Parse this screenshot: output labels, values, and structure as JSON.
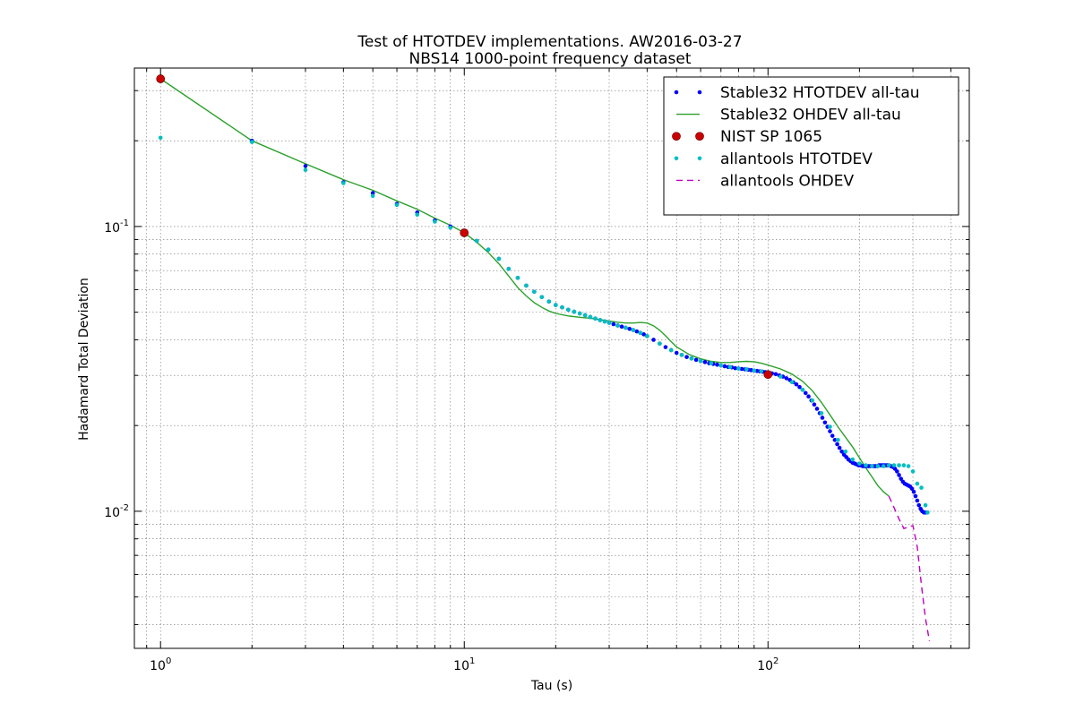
{
  "chart_data": {
    "type": "line",
    "title": "Test of HTOTDEV implementations. AW2016-03-27",
    "subtitle": "NBS14 1000-point frequency dataset",
    "xlabel": "Tau (s)",
    "ylabel": "Hadamard Total Deviation",
    "x_scale": "log",
    "y_scale": "log",
    "xlim": [
      0.82,
      460
    ],
    "ylim": [
      0.0033,
      0.36
    ],
    "grid": true,
    "legend_position": "top-right",
    "x_ticks": [
      {
        "value": 1,
        "base": "10",
        "exp": "0"
      },
      {
        "value": 10,
        "base": "10",
        "exp": "1"
      },
      {
        "value": 100,
        "base": "10",
        "exp": "2"
      }
    ],
    "y_ticks": [
      {
        "value": 0.01,
        "base": "10",
        "exp": "-2"
      },
      {
        "value": 0.1,
        "base": "10",
        "exp": "-1"
      }
    ],
    "series": [
      {
        "name": "Stable32 HTOTDEV all-tau",
        "style": "dots",
        "color": "#0000ff",
        "x": [
          1,
          2,
          3,
          4,
          5,
          6,
          7,
          8,
          9,
          10,
          11,
          12,
          13,
          14,
          15,
          16,
          17,
          18,
          19,
          20,
          21,
          22,
          23,
          24,
          25,
          26,
          27,
          28,
          29,
          30,
          31,
          32,
          33,
          34,
          35,
          36,
          37,
          38,
          39,
          40,
          42,
          44,
          46,
          48,
          50,
          52,
          54,
          56,
          58,
          60,
          62,
          64,
          66,
          68,
          70,
          72,
          74,
          76,
          78,
          80,
          82,
          84,
          86,
          88,
          90,
          92,
          94,
          96,
          98,
          100,
          103,
          106,
          109,
          112,
          115,
          118,
          121,
          124,
          127,
          130,
          133,
          136,
          139,
          142,
          145,
          148,
          151,
          154,
          157,
          160,
          163,
          166,
          169,
          172,
          175,
          178,
          181,
          184,
          187,
          190,
          193,
          196,
          199,
          202,
          205,
          208,
          211,
          214,
          217,
          220,
          223,
          226,
          229,
          232,
          235,
          238,
          241,
          244,
          247,
          250,
          254,
          258,
          262,
          266,
          270,
          274,
          278,
          282,
          286,
          290,
          294,
          298,
          302,
          306,
          310,
          314,
          318,
          322,
          326,
          330,
          335
        ],
        "y": [
          0.33,
          0.2,
          0.163,
          0.143,
          0.131,
          0.12,
          0.112,
          0.105,
          0.1,
          0.095,
          0.089,
          0.083,
          0.077,
          0.071,
          0.066,
          0.062,
          0.059,
          0.0565,
          0.0545,
          0.053,
          0.052,
          0.051,
          0.0502,
          0.0495,
          0.0488,
          0.0481,
          0.0475,
          0.0469,
          0.0464,
          0.0459,
          0.0454,
          0.0449,
          0.0445,
          0.0441,
          0.0437,
          0.0433,
          0.0428,
          0.0423,
          0.0418,
          0.0412,
          0.04,
          0.0388,
          0.0377,
          0.0368,
          0.036,
          0.0354,
          0.0348,
          0.0344,
          0.034,
          0.0337,
          0.0334,
          0.0331,
          0.0329,
          0.0327,
          0.0325,
          0.0323,
          0.0321,
          0.032,
          0.0318,
          0.0317,
          0.0316,
          0.0315,
          0.0314,
          0.0313,
          0.0312,
          0.0311,
          0.031,
          0.0309,
          0.0308,
          0.0307,
          0.0305,
          0.0303,
          0.03,
          0.0297,
          0.0293,
          0.0289,
          0.0284,
          0.0279,
          0.0273,
          0.0267,
          0.026,
          0.0253,
          0.0245,
          0.0237,
          0.0229,
          0.0221,
          0.0213,
          0.0205,
          0.0198,
          0.0191,
          0.0184,
          0.0178,
          0.0172,
          0.0167,
          0.0162,
          0.0158,
          0.0155,
          0.0152,
          0.015,
          0.0148,
          0.0147,
          0.0146,
          0.0145,
          0.0145,
          0.0144,
          0.0144,
          0.0144,
          0.0144,
          0.0144,
          0.0144,
          0.0144,
          0.0144,
          0.0144,
          0.0145,
          0.0145,
          0.0145,
          0.0145,
          0.0145,
          0.0145,
          0.0145,
          0.0144,
          0.0143,
          0.0141,
          0.0138,
          0.0134,
          0.013,
          0.0127,
          0.0125,
          0.0124,
          0.0123,
          0.0122,
          0.012,
          0.0117,
          0.0113,
          0.0109,
          0.0105,
          0.0102,
          0.01,
          0.0099,
          0.0099,
          0.0099
        ]
      },
      {
        "name": "Stable32 OHDEV all-tau",
        "style": "line",
        "color": "#2ca02c",
        "x": [
          1,
          2,
          3,
          4,
          5,
          6,
          7,
          8,
          9,
          10,
          11,
          12,
          13,
          14,
          15,
          16,
          17,
          18,
          19,
          20,
          22,
          24,
          26,
          28,
          30,
          32,
          34,
          36,
          38,
          40,
          42,
          44,
          46,
          48,
          50,
          55,
          60,
          65,
          70,
          75,
          80,
          85,
          90,
          95,
          100,
          110,
          120,
          130,
          140,
          150,
          160,
          170,
          180,
          190,
          200,
          210,
          220,
          230,
          240,
          250
        ],
        "y": [
          0.33,
          0.2,
          0.166,
          0.146,
          0.134,
          0.123,
          0.115,
          0.107,
          0.101,
          0.095,
          0.088,
          0.081,
          0.074,
          0.067,
          0.061,
          0.057,
          0.054,
          0.052,
          0.0505,
          0.0495,
          0.0485,
          0.048,
          0.0476,
          0.0471,
          0.0466,
          0.0461,
          0.0458,
          0.0458,
          0.046,
          0.0458,
          0.0448,
          0.0432,
          0.0413,
          0.0394,
          0.0378,
          0.0355,
          0.0343,
          0.0336,
          0.0333,
          0.0333,
          0.0335,
          0.0336,
          0.0335,
          0.0331,
          0.0326,
          0.0316,
          0.0303,
          0.0286,
          0.0265,
          0.0241,
          0.0218,
          0.0198,
          0.0182,
          0.0168,
          0.0154,
          0.0142,
          0.0132,
          0.0123,
          0.0117,
          0.0113
        ]
      },
      {
        "name": "NIST SP 1065",
        "style": "large-dots",
        "color": "#cc0000",
        "x": [
          1,
          10,
          100
        ],
        "y": [
          0.33,
          0.095,
          0.0302
        ]
      },
      {
        "name": "allantools HTOTDEV",
        "style": "dots",
        "color": "#00bfbf",
        "x": [
          1,
          2,
          3,
          4,
          5,
          6,
          7,
          8,
          9,
          10,
          11,
          12,
          13,
          14,
          15,
          16,
          17,
          18,
          19,
          20,
          21,
          22,
          23,
          24,
          25,
          26,
          27,
          28,
          29,
          30,
          32,
          34,
          36,
          38,
          40,
          44,
          48,
          52,
          56,
          60,
          65,
          70,
          75,
          80,
          85,
          90,
          95,
          100,
          110,
          120,
          130,
          140,
          150,
          160,
          170,
          180,
          190,
          200,
          210,
          220,
          230,
          240,
          250,
          260,
          270,
          280,
          290,
          300,
          310,
          320,
          330,
          335
        ],
        "y": [
          0.205,
          0.198,
          0.158,
          0.142,
          0.128,
          0.119,
          0.11,
          0.104,
          0.099,
          0.095,
          0.089,
          0.083,
          0.077,
          0.071,
          0.066,
          0.062,
          0.059,
          0.0565,
          0.0545,
          0.053,
          0.052,
          0.051,
          0.0502,
          0.0495,
          0.0488,
          0.0481,
          0.0475,
          0.0469,
          0.0464,
          0.0459,
          0.0449,
          0.0441,
          0.0433,
          0.0423,
          0.0412,
          0.0388,
          0.0368,
          0.0354,
          0.0344,
          0.0337,
          0.0331,
          0.0325,
          0.0321,
          0.0317,
          0.0315,
          0.0312,
          0.031,
          0.0307,
          0.0297,
          0.0284,
          0.0267,
          0.0245,
          0.0221,
          0.0198,
          0.0178,
          0.0162,
          0.0152,
          0.0147,
          0.0145,
          0.0144,
          0.0144,
          0.0144,
          0.0145,
          0.0145,
          0.0145,
          0.0145,
          0.0144,
          0.0138,
          0.0125,
          0.0121,
          0.0105,
          0.0099
        ]
      },
      {
        "name": "allantools OHDEV",
        "style": "dashed",
        "color": "#bf00bf",
        "x": [
          250,
          260,
          270,
          280,
          290,
          300,
          310,
          320,
          330,
          340
        ],
        "y": [
          0.0113,
          0.0103,
          0.0094,
          0.0087,
          0.0088,
          0.0089,
          0.0075,
          0.0055,
          0.0042,
          0.0035
        ]
      }
    ]
  }
}
